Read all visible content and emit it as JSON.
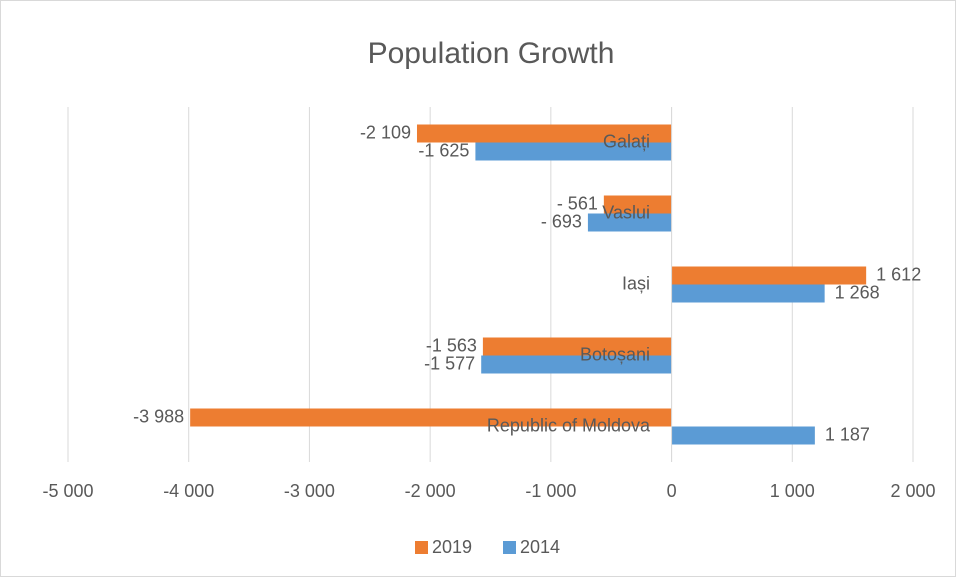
{
  "chart_data": {
    "type": "barh",
    "title": "Population Growth",
    "categories": [
      "Galați",
      "Vaslui",
      "Iași",
      "Botoșani",
      "Republic of Moldova"
    ],
    "series": [
      {
        "name": "2019",
        "color": "#ED7D31",
        "values": [
          -2109,
          -561,
          1612,
          -1563,
          -3988
        ],
        "value_labels": [
          "-2 109",
          "- 561",
          "1 612",
          "-1 563",
          "-3 988"
        ]
      },
      {
        "name": "2014",
        "color": "#5B9BD5",
        "values": [
          -1625,
          -693,
          1268,
          -1577,
          1187
        ],
        "value_labels": [
          "-1 625",
          "- 693",
          "1 268",
          "-1 577",
          "1 187"
        ]
      }
    ],
    "xlim": [
      -5000,
      2000
    ],
    "xticks": [
      {
        "value": -5000,
        "label": "-5 000"
      },
      {
        "value": -4000,
        "label": "-4 000"
      },
      {
        "value": -3000,
        "label": "-3 000"
      },
      {
        "value": -2000,
        "label": "-2 000"
      },
      {
        "value": -1000,
        "label": "-1 000"
      },
      0,
      {
        "value": 1000,
        "label": "1 000"
      },
      {
        "value": 2000,
        "label": "2 000"
      }
    ],
    "grid": true,
    "legend": "bottom"
  }
}
